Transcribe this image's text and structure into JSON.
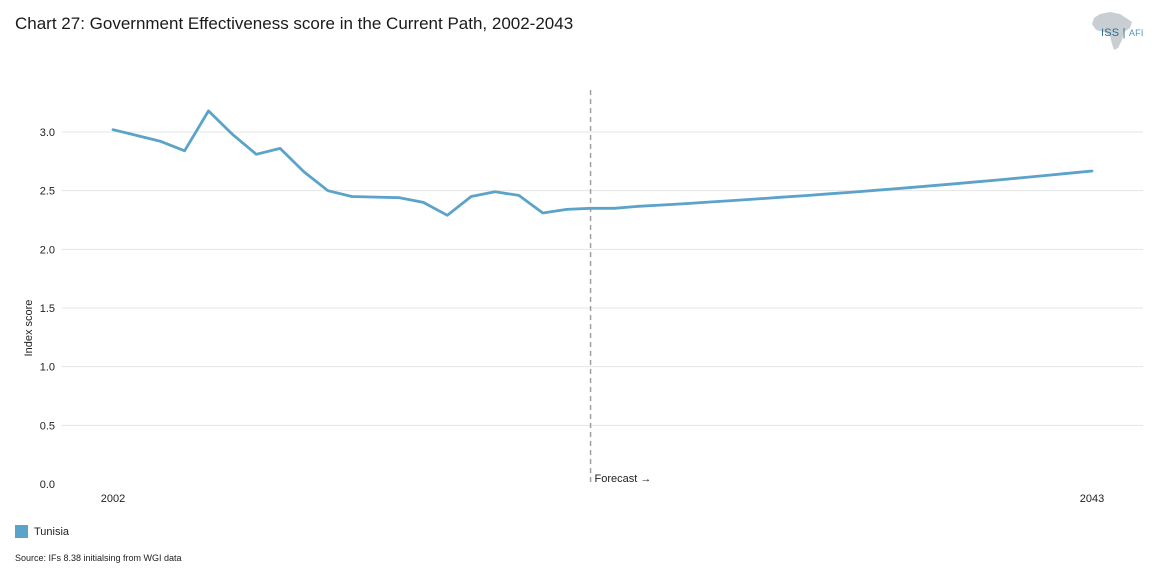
{
  "title": "Chart 27: Government Effectiveness score in the Current Path, 2002-2043",
  "logo": {
    "name": "ISS",
    "suffix": "AFI"
  },
  "source": "Source: IFs 8.38 initialsing from WGI data",
  "forecast_label": "Forecast →",
  "colors": {
    "series": "#5ba3c9",
    "grid": "#e4e4e4",
    "forecast_line": "#a0a0a0"
  },
  "chart_data": {
    "type": "line",
    "ylabel": "Index score",
    "xlabel": "",
    "xlim": [
      2002,
      2043
    ],
    "ylim": [
      0,
      3.3
    ],
    "yticks": [
      0.0,
      0.5,
      1.0,
      1.5,
      2.0,
      2.5,
      3.0
    ],
    "ytick_labels": [
      "0.0",
      "0.5",
      "1.0",
      "1.5",
      "2.0",
      "2.5",
      "3.0"
    ],
    "xtick_labels": [
      "2002",
      "2043"
    ],
    "forecast_start": 2022,
    "grid": true,
    "legend_position": "bottom-left",
    "series": [
      {
        "name": "Tunisia",
        "x": [
          2002,
          2003,
          2004,
          2005,
          2006,
          2007,
          2008,
          2009,
          2010,
          2011,
          2012,
          2013,
          2014,
          2015,
          2016,
          2017,
          2018,
          2019,
          2020,
          2021,
          2022,
          2023,
          2024,
          2025,
          2026,
          2027,
          2028,
          2029,
          2030,
          2031,
          2032,
          2033,
          2034,
          2035,
          2036,
          2037,
          2038,
          2039,
          2040,
          2041,
          2042,
          2043
        ],
        "values": [
          3.02,
          2.97,
          2.92,
          2.84,
          3.18,
          2.98,
          2.81,
          2.86,
          2.66,
          2.5,
          2.45,
          2.445,
          2.44,
          2.4,
          2.29,
          2.45,
          2.49,
          2.46,
          2.31,
          2.34,
          2.35,
          2.35,
          2.367,
          2.378,
          2.39,
          2.403,
          2.416,
          2.43,
          2.444,
          2.458,
          2.473,
          2.488,
          2.504,
          2.52,
          2.537,
          2.554,
          2.572,
          2.59,
          2.609,
          2.628,
          2.648,
          2.668
        ]
      }
    ]
  }
}
